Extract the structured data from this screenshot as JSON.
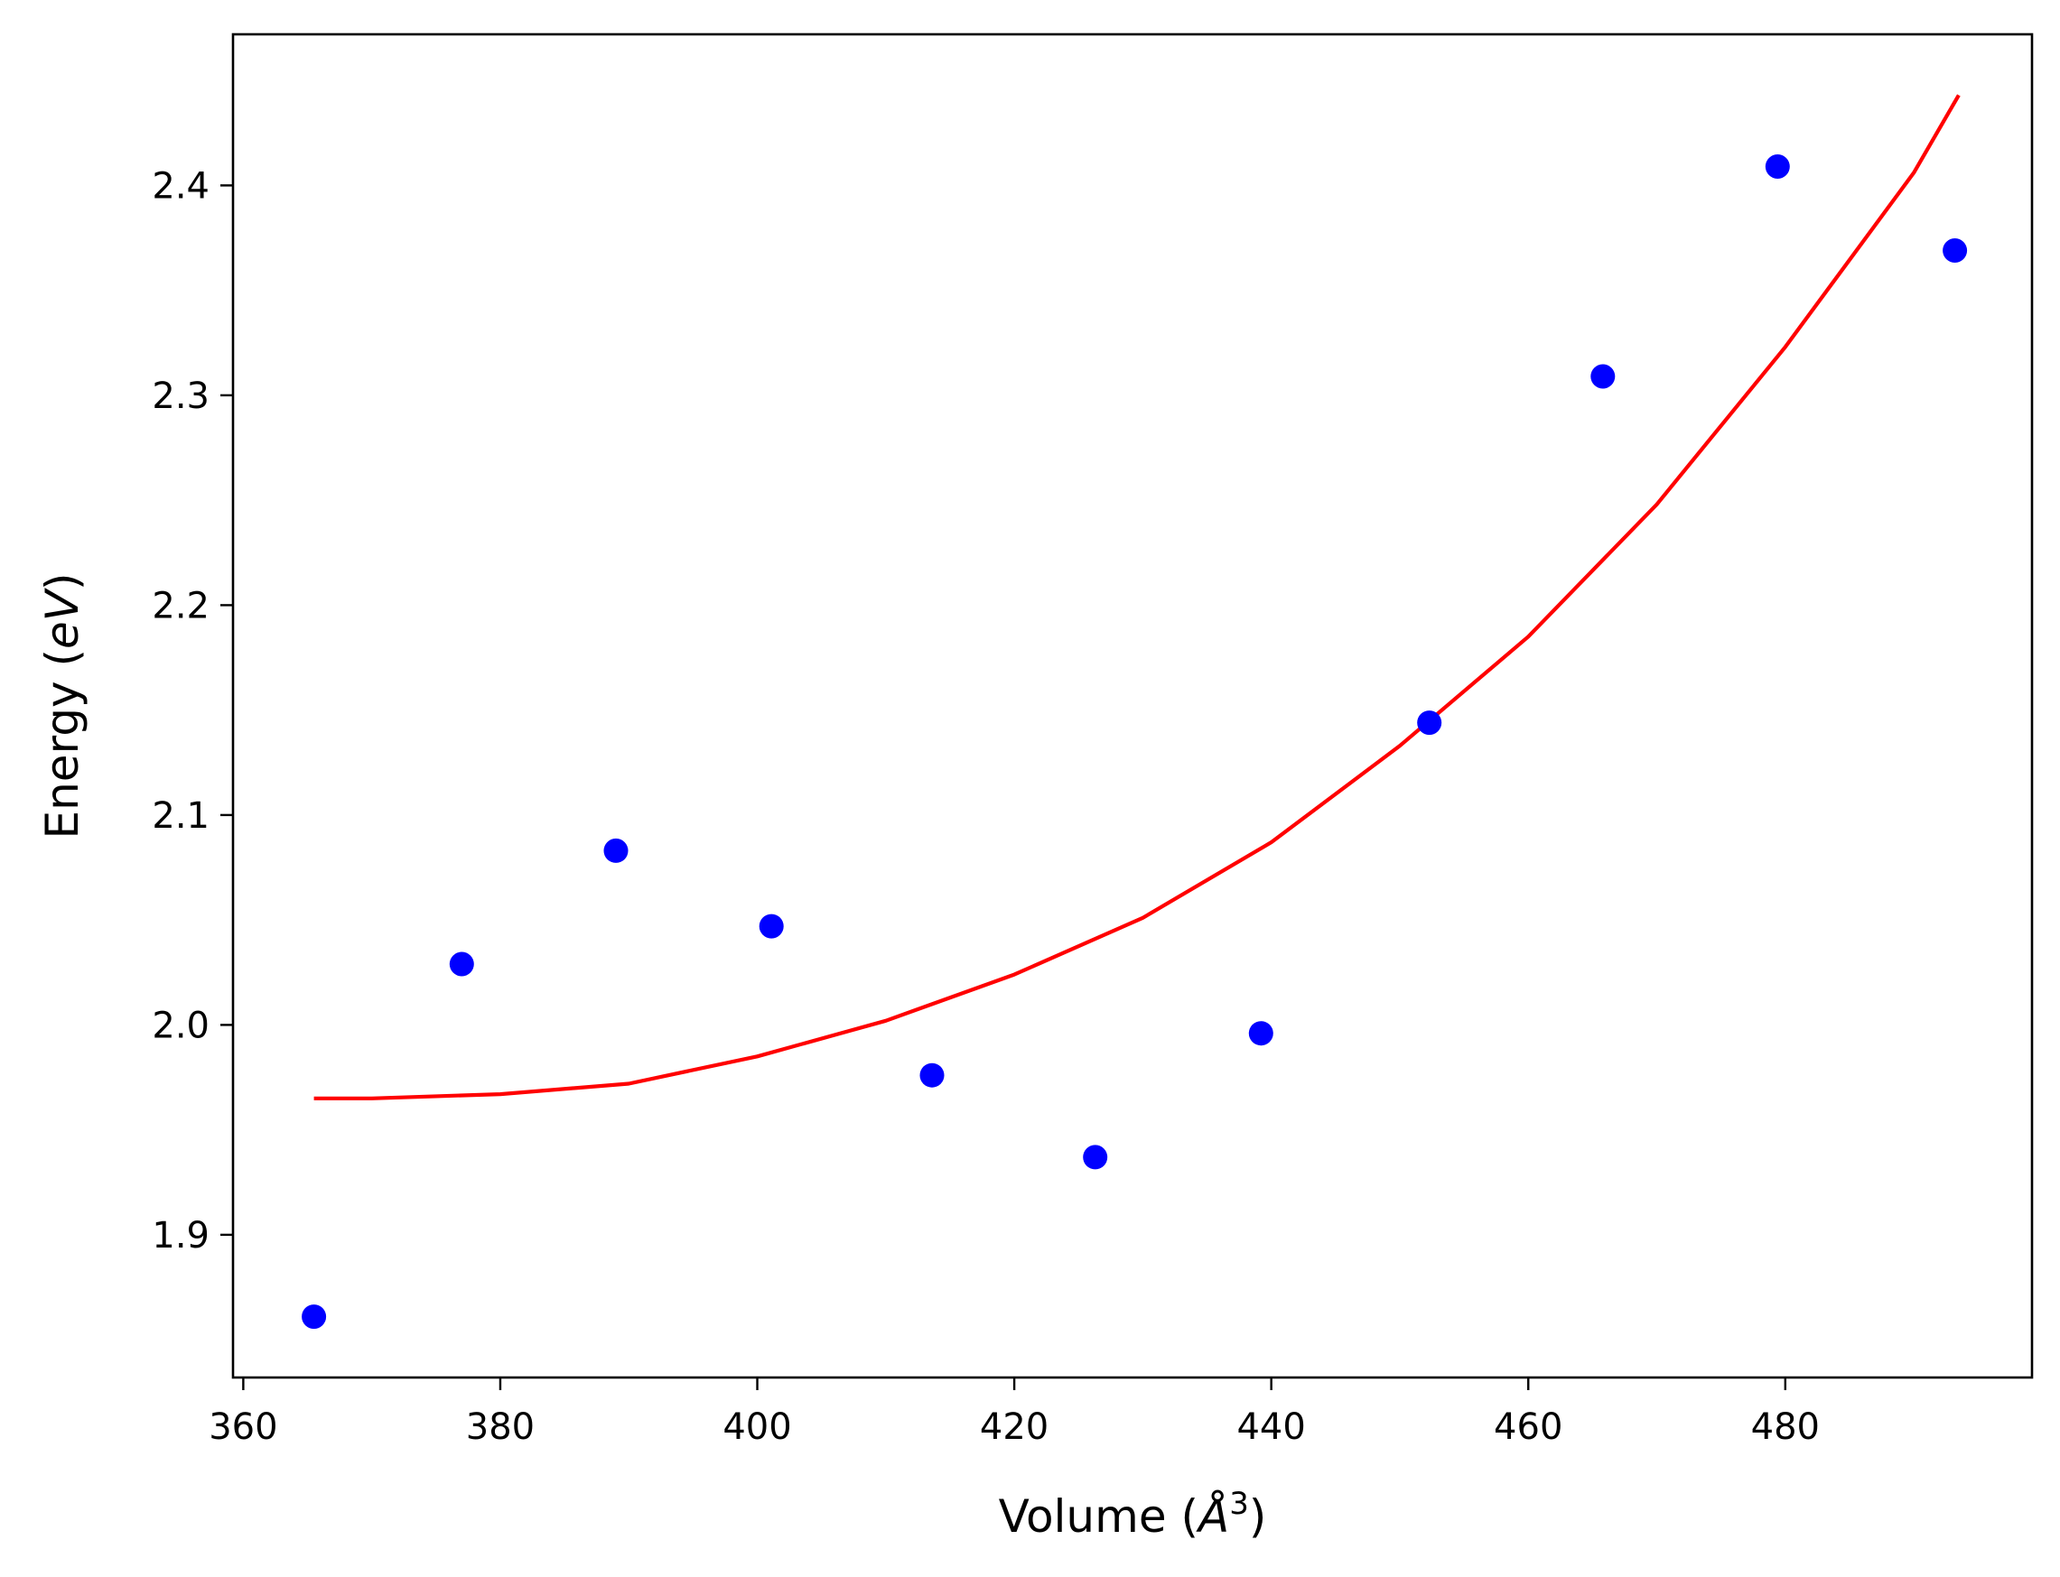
{
  "chart_data": {
    "type": "scatter",
    "title": "",
    "xlabel": {
      "prefix": "Volume (",
      "symbol": "Å",
      "sup": "3",
      "suffix": ")"
    },
    "ylabel": {
      "prefix": "Energy (",
      "symbol": "eV",
      "suffix": ")"
    },
    "xlim": [
      359.2,
      499.2
    ],
    "ylim": [
      1.832,
      2.472
    ],
    "xticks": [
      360,
      380,
      400,
      420,
      440,
      460,
      480
    ],
    "yticks": [
      1.9,
      2.0,
      2.1,
      2.2,
      2.3,
      2.4
    ],
    "xtick_labels": [
      "360",
      "380",
      "400",
      "420",
      "440",
      "460",
      "480"
    ],
    "ytick_labels": [
      "1.9",
      "2.0",
      "2.1",
      "2.2",
      "2.3",
      "2.4"
    ],
    "grid": false,
    "legend": "none",
    "series": [
      {
        "kind": "scatter",
        "color": "#0000ff",
        "x": [
          365.5,
          377.0,
          389.0,
          401.1,
          413.6,
          426.3,
          439.2,
          452.3,
          465.8,
          479.4,
          493.2
        ],
        "y": [
          1.861,
          2.029,
          2.083,
          2.047,
          1.976,
          1.937,
          1.996,
          2.144,
          2.309,
          2.409,
          2.369
        ]
      },
      {
        "kind": "line",
        "color": "#ff0000",
        "x": [
          365.5,
          370.0,
          380.0,
          390.0,
          400.0,
          410.0,
          420.0,
          430.0,
          440.0,
          450.0,
          460.0,
          470.0,
          480.0,
          490.0,
          493.5
        ],
        "y": [
          1.965,
          1.965,
          1.967,
          1.972,
          1.985,
          2.002,
          2.024,
          2.051,
          2.087,
          2.133,
          2.185,
          2.248,
          2.323,
          2.406,
          2.443
        ]
      }
    ]
  }
}
